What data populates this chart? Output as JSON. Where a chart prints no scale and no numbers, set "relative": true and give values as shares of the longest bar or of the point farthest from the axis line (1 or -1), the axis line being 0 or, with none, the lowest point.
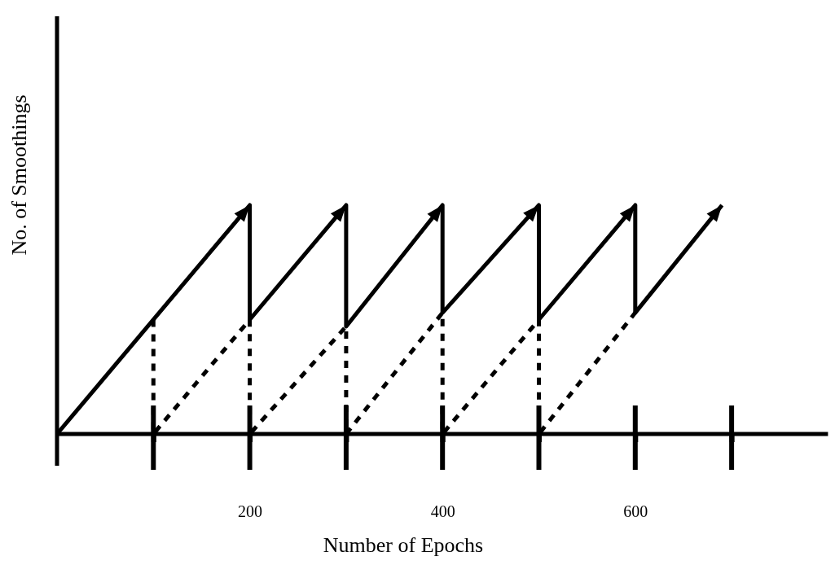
{
  "chart_data": {
    "type": "line",
    "xlabel": "Number of Epochs",
    "ylabel": "No. of Smoothings",
    "relative": true,
    "xlim": [
      0,
      800
    ],
    "xticks": [
      {
        "value": 100,
        "label": null
      },
      200,
      {
        "value": 300,
        "label": null
      },
      400,
      {
        "value": 500,
        "label": null
      },
      600,
      {
        "value": 700,
        "label": null
      }
    ],
    "series": [
      {
        "color": "#000000",
        "line_style": "solid",
        "x": [
          0,
          200,
          200,
          300,
          300,
          400,
          400,
          500,
          500,
          600,
          600,
          690
        ],
        "values": [
          0,
          1,
          0.5,
          1,
          0.47,
          1,
          0.53,
          1,
          0.5,
          1,
          0.53,
          1
        ]
      },
      {
        "color": "#000000",
        "line_style": "dashed",
        "x": [
          100,
          100,
          200,
          200,
          300,
          300,
          400,
          400,
          500,
          500,
          600
        ],
        "values": [
          0.5,
          0,
          0.5,
          0,
          0.47,
          0,
          0.53,
          0,
          0.5,
          0,
          0.53
        ]
      }
    ]
  }
}
